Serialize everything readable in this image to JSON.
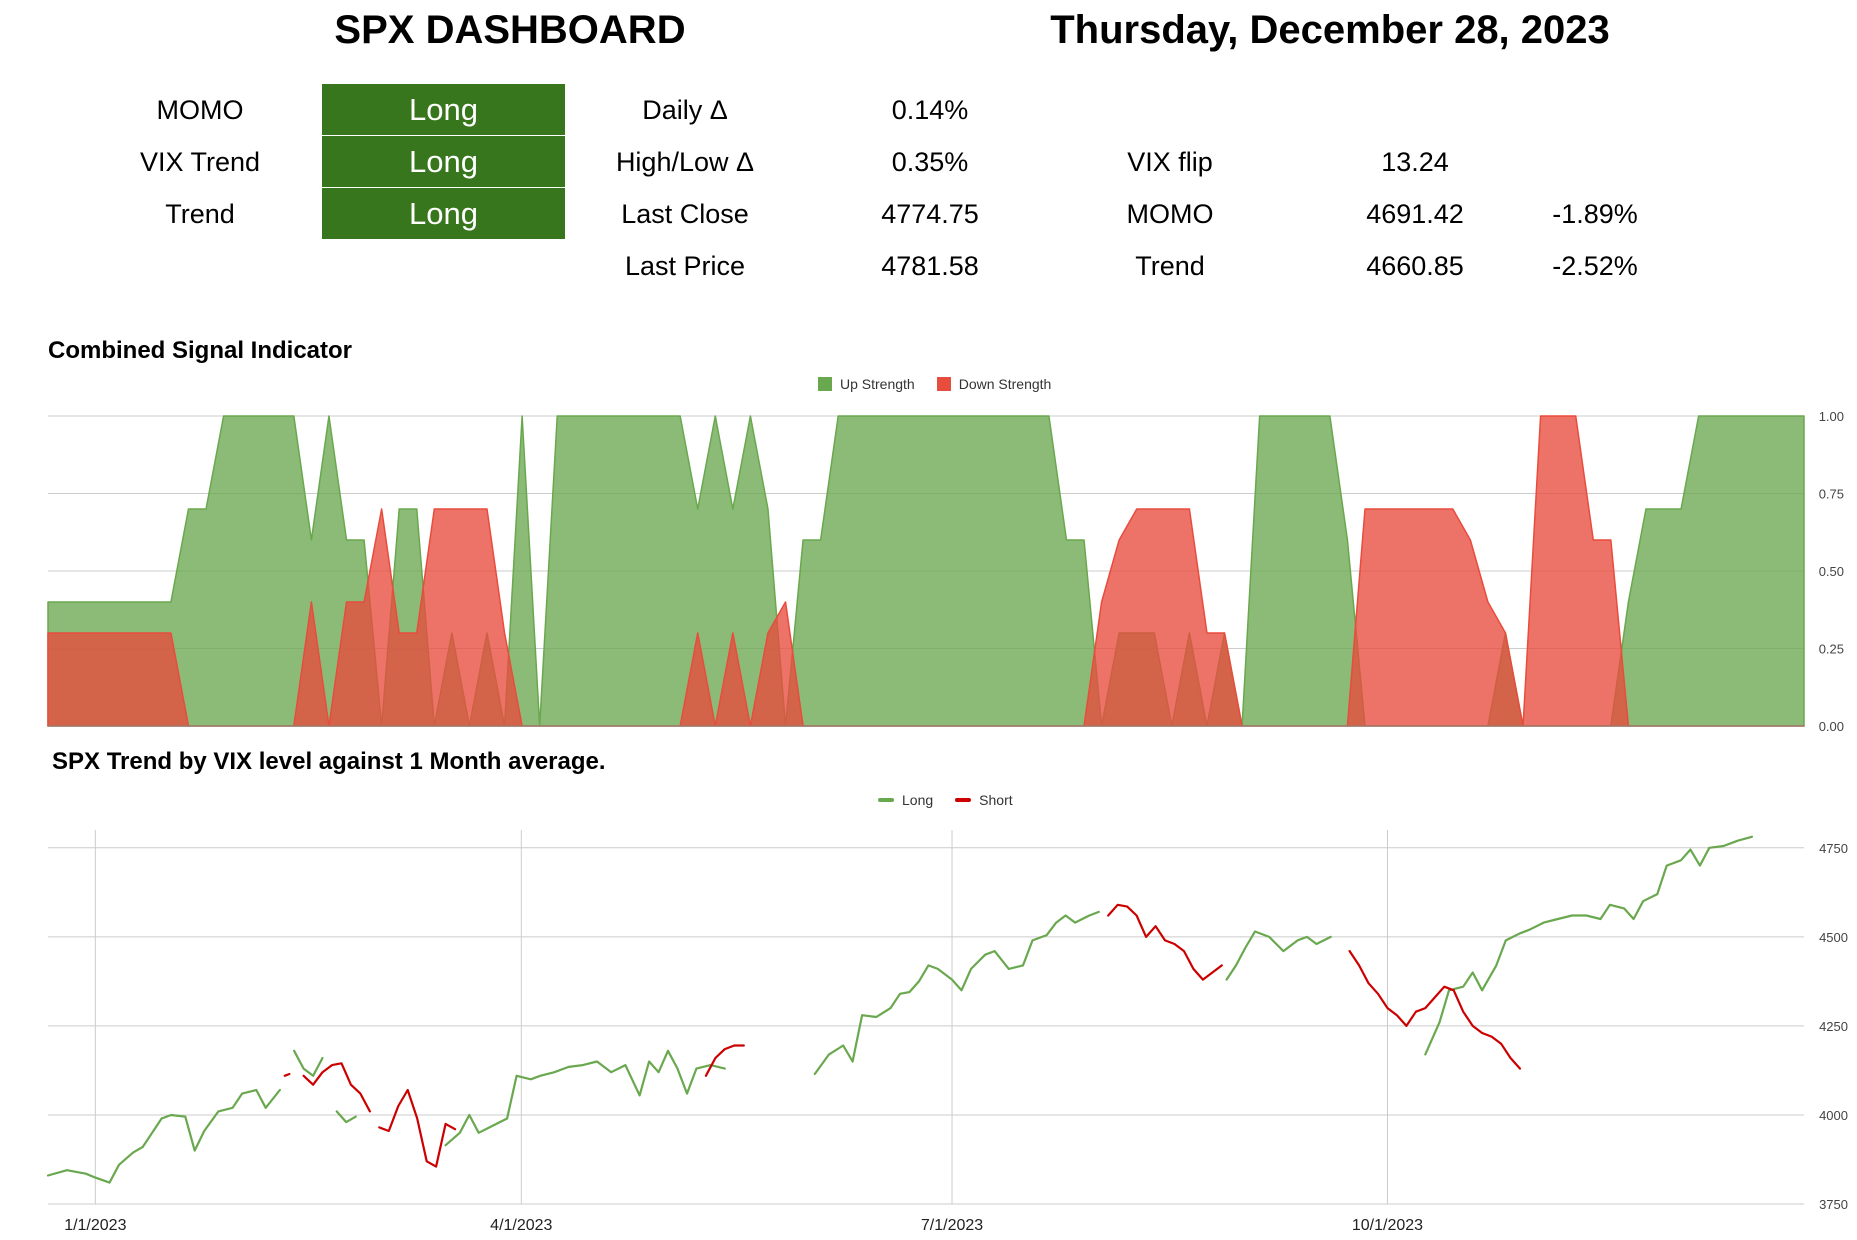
{
  "header": {
    "title": "SPX DASHBOARD",
    "date": "Thursday, December 28, 2023"
  },
  "signals": [
    {
      "label": "MOMO",
      "value": "Long"
    },
    {
      "label": "VIX Trend",
      "value": "Long"
    },
    {
      "label": "Trend",
      "value": "Long"
    }
  ],
  "stats": [
    {
      "label": "Daily Δ",
      "value": "0.14%"
    },
    {
      "label": "High/Low Δ",
      "value": "0.35%"
    },
    {
      "label": "Last Close",
      "value": "4774.75"
    },
    {
      "label": "Last Price",
      "value": "4781.58"
    }
  ],
  "levels": [
    {
      "label": "VIX flip",
      "value": "13.24",
      "pct": ""
    },
    {
      "label": "MOMO",
      "value": "4691.42",
      "pct": "-1.89%"
    },
    {
      "label": "Trend",
      "value": "4660.85",
      "pct": "-2.52%"
    }
  ],
  "colors": {
    "long_badge": "#38761d",
    "up_fill": "#6aa84f",
    "down_fill": "#e84c3d",
    "long_line": "#6aa84f",
    "short_line": "#cc0000"
  },
  "chart_data": [
    {
      "type": "area",
      "title": "Combined Signal Indicator",
      "legend": [
        "Up Strength",
        "Down Strength"
      ],
      "legend_position": "top",
      "ylim": [
        0,
        1
      ],
      "yticks": [
        "0.00",
        "0.25",
        "0.50",
        "0.75",
        "1.00"
      ],
      "x": [
        0,
        7,
        8,
        9,
        10,
        14,
        15,
        16,
        17,
        18,
        19,
        20,
        21,
        22,
        23,
        24,
        25,
        26,
        27,
        28,
        29,
        30,
        31,
        32,
        33,
        34,
        35,
        36,
        37,
        38,
        39,
        40,
        41,
        42,
        43,
        44,
        45,
        46,
        47,
        48,
        49,
        50,
        51,
        52,
        53,
        54,
        55,
        56,
        57,
        58,
        59,
        60,
        61,
        62,
        63,
        64,
        65,
        66,
        67,
        68,
        69,
        70,
        71,
        72,
        73,
        74,
        75,
        76,
        77,
        78,
        79,
        80,
        81,
        82,
        83,
        84,
        85,
        86,
        87,
        88,
        89,
        90,
        91,
        92,
        93,
        94,
        95,
        96,
        97,
        98,
        99,
        100
      ],
      "series": [
        {
          "name": "Up Strength",
          "values": [
            0.4,
            0.4,
            0.7,
            0.7,
            1.0,
            1.0,
            0.6,
            1.0,
            0.6,
            0.6,
            0.0,
            0.7,
            0.7,
            0.0,
            0.3,
            0.0,
            0.3,
            0.0,
            1.0,
            0.0,
            1.0,
            1.0,
            1.0,
            1.0,
            1.0,
            1.0,
            1.0,
            1.0,
            0.7,
            1.0,
            0.7,
            1.0,
            0.7,
            0.0,
            0.6,
            0.6,
            1.0,
            1.0,
            1.0,
            1.0,
            1.0,
            1.0,
            1.0,
            1.0,
            1.0,
            1.0,
            1.0,
            1.0,
            1.0,
            0.6,
            0.6,
            0.0,
            0.3,
            0.3,
            0.3,
            0.0,
            0.3,
            0.0,
            0.3,
            0.0,
            1.0,
            1.0,
            1.0,
            1.0,
            1.0,
            0.6,
            0.0,
            0.0,
            0.0,
            0.0,
            0.0,
            0.0,
            0.0,
            0.0,
            0.3,
            0.0,
            0.0,
            0.0,
            0.0,
            0.0,
            0.0,
            0.4,
            0.7,
            0.7,
            0.7,
            1.0,
            1.0,
            1.0,
            1.0,
            1.0,
            1.0,
            1.0
          ]
        },
        {
          "name": "Down Strength",
          "values": [
            0.3,
            0.3,
            0.0,
            0.0,
            0.0,
            0.0,
            0.4,
            0.0,
            0.4,
            0.4,
            0.7,
            0.3,
            0.3,
            0.7,
            0.7,
            0.7,
            0.7,
            0.3,
            0.0,
            0.0,
            0.0,
            0.0,
            0.0,
            0.0,
            0.0,
            0.0,
            0.0,
            0.0,
            0.3,
            0.0,
            0.3,
            0.0,
            0.3,
            0.4,
            0.0,
            0.0,
            0.0,
            0.0,
            0.0,
            0.0,
            0.0,
            0.0,
            0.0,
            0.0,
            0.0,
            0.0,
            0.0,
            0.0,
            0.0,
            0.0,
            0.0,
            0.4,
            0.6,
            0.7,
            0.7,
            0.7,
            0.7,
            0.3,
            0.3,
            0.0,
            0.0,
            0.0,
            0.0,
            0.0,
            0.0,
            0.0,
            0.7,
            0.7,
            0.7,
            0.7,
            0.7,
            0.7,
            0.6,
            0.4,
            0.3,
            0.0,
            1.0,
            1.0,
            1.0,
            0.6,
            0.6,
            0.0,
            0.0,
            0.0,
            0.0,
            0.0,
            0.0,
            0.0,
            0.0,
            0.0,
            0.0,
            0.0
          ]
        }
      ]
    },
    {
      "type": "line",
      "title": "SPX Trend by VIX level against 1 Month average.",
      "legend": [
        "Long",
        "Short"
      ],
      "legend_position": "top",
      "ylim": [
        3750,
        4800
      ],
      "yticks": [
        "3750",
        "4000",
        "4250",
        "4500",
        "4750"
      ],
      "xticks": [
        "1/1/2023",
        "4/1/2023",
        "7/1/2023",
        "10/1/2023"
      ],
      "xtick_days": [
        0,
        90,
        181,
        273
      ],
      "xlim": [
        -10,
        361
      ],
      "series": [
        {
          "name": "Long",
          "segments": [
            [
              [
                -10,
                3830
              ],
              [
                -6,
                3845
              ],
              [
                -2,
                3835
              ],
              [
                0,
                3824
              ],
              [
                3,
                3810
              ],
              [
                5,
                3860
              ],
              [
                8,
                3895
              ],
              [
                10,
                3910
              ],
              [
                14,
                3990
              ],
              [
                16,
                4000
              ],
              [
                19,
                3995
              ],
              [
                21,
                3900
              ],
              [
                23,
                3955
              ],
              [
                26,
                4010
              ],
              [
                29,
                4020
              ],
              [
                31,
                4060
              ],
              [
                34,
                4070
              ],
              [
                36,
                4020
              ],
              [
                39,
                4070
              ]
            ],
            [
              [
                42,
                4180
              ],
              [
                44,
                4130
              ],
              [
                46,
                4110
              ],
              [
                48,
                4160
              ]
            ],
            [
              [
                51,
                4010
              ],
              [
                53,
                3980
              ],
              [
                55,
                3995
              ]
            ],
            [
              [
                74,
                3915
              ],
              [
                77,
                3950
              ],
              [
                79,
                4000
              ],
              [
                81,
                3950
              ],
              [
                84,
                3970
              ],
              [
                87,
                3990
              ],
              [
                89,
                4110
              ],
              [
                92,
                4100
              ],
              [
                94,
                4110
              ],
              [
                97,
                4120
              ],
              [
                100,
                4135
              ],
              [
                103,
                4140
              ],
              [
                106,
                4150
              ],
              [
                109,
                4120
              ],
              [
                112,
                4140
              ],
              [
                115,
                4055
              ],
              [
                117,
                4150
              ],
              [
                119,
                4120
              ],
              [
                121,
                4180
              ],
              [
                123,
                4130
              ],
              [
                125,
                4060
              ],
              [
                127,
                4130
              ],
              [
                130,
                4140
              ],
              [
                133,
                4130
              ]
            ],
            [
              [
                152,
                4115
              ],
              [
                155,
                4170
              ],
              [
                158,
                4195
              ],
              [
                160,
                4150
              ],
              [
                162,
                4280
              ],
              [
                165,
                4275
              ],
              [
                168,
                4300
              ],
              [
                170,
                4340
              ],
              [
                172,
                4345
              ],
              [
                174,
                4375
              ],
              [
                176,
                4420
              ],
              [
                178,
                4410
              ],
              [
                181,
                4380
              ],
              [
                183,
                4350
              ],
              [
                185,
                4410
              ],
              [
                188,
                4450
              ],
              [
                190,
                4460
              ],
              [
                193,
                4410
              ],
              [
                196,
                4420
              ],
              [
                198,
                4490
              ],
              [
                201,
                4505
              ],
              [
                203,
                4540
              ],
              [
                205,
                4560
              ],
              [
                207,
                4540
              ],
              [
                210,
                4560
              ],
              [
                212,
                4570
              ]
            ],
            [
              [
                239,
                4380
              ],
              [
                241,
                4420
              ],
              [
                243,
                4470
              ],
              [
                245,
                4515
              ],
              [
                248,
                4500
              ],
              [
                251,
                4460
              ],
              [
                254,
                4490
              ],
              [
                256,
                4500
              ],
              [
                258,
                4480
              ],
              [
                261,
                4500
              ]
            ],
            [
              [
                281,
                4170
              ],
              [
                284,
                4260
              ],
              [
                286,
                4350
              ],
              [
                289,
                4360
              ],
              [
                291,
                4400
              ],
              [
                293,
                4350
              ],
              [
                296,
                4420
              ],
              [
                298,
                4490
              ],
              [
                301,
                4510
              ],
              [
                303,
                4520
              ],
              [
                306,
                4540
              ],
              [
                309,
                4550
              ],
              [
                312,
                4560
              ],
              [
                315,
                4560
              ],
              [
                318,
                4550
              ],
              [
                320,
                4590
              ],
              [
                323,
                4580
              ],
              [
                325,
                4550
              ],
              [
                327,
                4600
              ],
              [
                330,
                4620
              ],
              [
                332,
                4700
              ],
              [
                335,
                4715
              ],
              [
                337,
                4745
              ],
              [
                339,
                4700
              ],
              [
                341,
                4750
              ],
              [
                344,
                4755
              ],
              [
                347,
                4770
              ],
              [
                350,
                4781
              ]
            ]
          ]
        },
        {
          "name": "Short",
          "segments": [
            [
              [
                40,
                4110
              ],
              [
                41,
                4115
              ]
            ],
            [
              [
                44,
                4110
              ],
              [
                46,
                4085
              ],
              [
                48,
                4120
              ],
              [
                50,
                4140
              ],
              [
                52,
                4145
              ],
              [
                54,
                4085
              ],
              [
                56,
                4060
              ],
              [
                58,
                4010
              ]
            ],
            [
              [
                60,
                3965
              ],
              [
                62,
                3955
              ],
              [
                64,
                4025
              ],
              [
                66,
                4070
              ],
              [
                68,
                3990
              ],
              [
                70,
                3870
              ],
              [
                72,
                3855
              ],
              [
                74,
                3975
              ],
              [
                76,
                3960
              ]
            ],
            [
              [
                129,
                4110
              ],
              [
                131,
                4160
              ],
              [
                133,
                4185
              ],
              [
                135,
                4195
              ],
              [
                137,
                4195
              ]
            ],
            [
              [
                214,
                4560
              ],
              [
                216,
                4590
              ],
              [
                218,
                4585
              ],
              [
                220,
                4560
              ],
              [
                222,
                4500
              ],
              [
                224,
                4530
              ],
              [
                226,
                4490
              ],
              [
                228,
                4480
              ],
              [
                230,
                4460
              ],
              [
                232,
                4410
              ],
              [
                234,
                4380
              ],
              [
                236,
                4400
              ],
              [
                238,
                4420
              ]
            ],
            [
              [
                265,
                4460
              ],
              [
                267,
                4420
              ],
              [
                269,
                4370
              ],
              [
                271,
                4340
              ],
              [
                273,
                4300
              ],
              [
                275,
                4280
              ],
              [
                277,
                4250
              ],
              [
                279,
                4290
              ],
              [
                281,
                4300
              ],
              [
                283,
                4330
              ],
              [
                285,
                4360
              ],
              [
                287,
                4350
              ],
              [
                289,
                4290
              ],
              [
                291,
                4250
              ],
              [
                293,
                4230
              ],
              [
                295,
                4220
              ],
              [
                297,
                4200
              ],
              [
                299,
                4160
              ],
              [
                301,
                4130
              ]
            ]
          ]
        }
      ]
    }
  ]
}
